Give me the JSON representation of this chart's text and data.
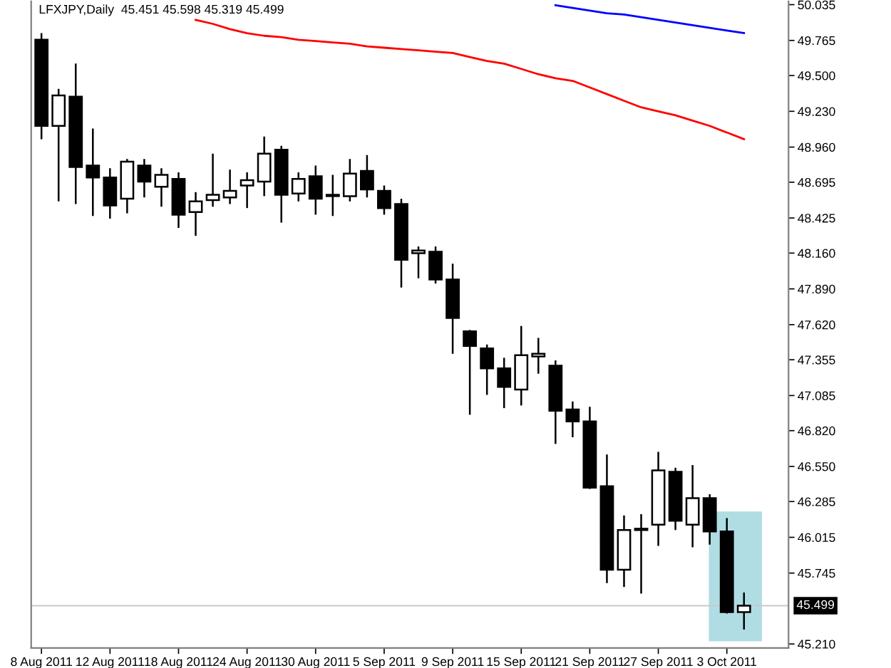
{
  "chart_data": {
    "type": "candlestick",
    "title": "LFXJPY,Daily  45.451 45.598 45.319 45.499",
    "categories": [
      "8 Aug 2011",
      null,
      null,
      null,
      "12 Aug 2011",
      null,
      null,
      null,
      "18 Aug 2011",
      null,
      null,
      null,
      "24 Aug 2011",
      null,
      null,
      null,
      "30 Aug 2011",
      null,
      null,
      null,
      "5 Sep 2011",
      null,
      null,
      null,
      "9 Sep 2011",
      null,
      null,
      null,
      "15 Sep 2011",
      null,
      null,
      null,
      "21 Sep 2011",
      null,
      null,
      null,
      "27 Sep 2011",
      null,
      null,
      null,
      "3 Oct 2011",
      null
    ],
    "ohlc": [
      [
        49.77,
        49.82,
        49.02,
        49.12
      ],
      [
        49.12,
        49.4,
        48.55,
        49.35
      ],
      [
        49.34,
        49.59,
        48.53,
        48.81
      ],
      [
        48.82,
        49.1,
        48.44,
        48.73
      ],
      [
        48.73,
        48.8,
        48.42,
        48.52
      ],
      [
        48.57,
        48.87,
        48.46,
        48.85
      ],
      [
        48.82,
        48.87,
        48.58,
        48.7
      ],
      [
        48.66,
        48.8,
        48.51,
        48.75
      ],
      [
        48.72,
        48.77,
        48.35,
        48.45
      ],
      [
        48.47,
        48.62,
        48.29,
        48.55
      ],
      [
        48.56,
        48.91,
        48.51,
        48.6
      ],
      [
        48.58,
        48.79,
        48.53,
        48.63
      ],
      [
        48.67,
        48.77,
        48.5,
        48.71
      ],
      [
        48.7,
        49.04,
        48.59,
        48.91
      ],
      [
        48.94,
        48.97,
        48.39,
        48.6
      ],
      [
        48.61,
        48.77,
        48.55,
        48.72
      ],
      [
        48.74,
        48.82,
        48.45,
        48.57
      ],
      [
        48.6,
        48.75,
        48.44,
        48.59
      ],
      [
        48.59,
        48.87,
        48.55,
        48.76
      ],
      [
        48.78,
        48.9,
        48.58,
        48.64
      ],
      [
        48.63,
        48.67,
        48.45,
        48.5
      ],
      [
        48.53,
        48.57,
        47.9,
        48.11
      ],
      [
        48.16,
        48.21,
        47.97,
        48.18
      ],
      [
        48.17,
        48.21,
        47.93,
        47.96
      ],
      [
        47.96,
        48.08,
        47.4,
        47.67
      ],
      [
        47.57,
        47.58,
        46.94,
        47.46
      ],
      [
        47.44,
        47.47,
        47.09,
        47.29
      ],
      [
        47.29,
        47.37,
        46.99,
        47.15
      ],
      [
        47.13,
        47.61,
        47.01,
        47.39
      ],
      [
        47.38,
        47.52,
        47.25,
        47.4
      ],
      [
        47.31,
        47.35,
        46.72,
        46.97
      ],
      [
        46.98,
        47.04,
        46.77,
        46.89
      ],
      [
        46.89,
        47.0,
        46.38,
        46.39
      ],
      [
        46.4,
        46.64,
        45.67,
        45.77
      ],
      [
        45.77,
        46.18,
        45.64,
        46.07
      ],
      [
        46.07,
        46.19,
        45.59,
        46.08
      ],
      [
        46.11,
        46.66,
        45.95,
        46.52
      ],
      [
        46.51,
        46.54,
        46.07,
        46.14
      ],
      [
        46.11,
        46.56,
        45.94,
        46.31
      ],
      [
        46.31,
        46.34,
        45.96,
        46.06
      ],
      [
        46.06,
        46.16,
        45.44,
        45.45
      ],
      [
        45.451,
        45.598,
        45.319,
        45.499
      ]
    ],
    "series": [
      {
        "type": "line",
        "color": "#ff0000",
        "values": [
          null,
          null,
          null,
          null,
          null,
          null,
          null,
          null,
          null,
          49.92,
          49.89,
          49.85,
          49.82,
          49.8,
          49.79,
          49.77,
          49.76,
          49.75,
          49.74,
          49.72,
          49.71,
          49.7,
          49.69,
          49.68,
          49.67,
          49.64,
          49.61,
          49.59,
          49.55,
          49.51,
          49.48,
          49.46,
          49.41,
          49.36,
          49.31,
          49.26,
          49.23,
          49.2,
          49.16,
          49.12,
          49.07,
          49.02
        ]
      },
      {
        "type": "line",
        "color": "#0000ff",
        "values": [
          null,
          null,
          null,
          null,
          null,
          null,
          null,
          null,
          null,
          null,
          null,
          null,
          null,
          null,
          null,
          null,
          null,
          null,
          null,
          null,
          null,
          null,
          null,
          null,
          null,
          null,
          null,
          null,
          null,
          null,
          50.03,
          50.01,
          49.99,
          49.97,
          49.96,
          49.94,
          49.92,
          49.9,
          49.88,
          49.86,
          49.84,
          49.82
        ]
      }
    ],
    "ylim": [
      45.18,
      50.06
    ],
    "yticks": [
      {
        "value": 50.035,
        "label": "50.035"
      },
      {
        "value": 49.765,
        "label": "49.765"
      },
      {
        "value": 49.5,
        "label": "49.500"
      },
      {
        "value": 49.23,
        "label": "49.230"
      },
      {
        "value": 48.96,
        "label": "48.960"
      },
      {
        "value": 48.695,
        "label": "48.695"
      },
      {
        "value": 48.425,
        "label": "48.425"
      },
      {
        "value": 48.16,
        "label": "48.160"
      },
      {
        "value": 47.89,
        "label": "47.890"
      },
      {
        "value": 47.62,
        "label": "47.620"
      },
      {
        "value": 47.355,
        "label": "47.355"
      },
      {
        "value": 47.085,
        "label": "47.085"
      },
      {
        "value": 46.82,
        "label": "46.820"
      },
      {
        "value": 46.55,
        "label": "46.550"
      },
      {
        "value": 46.285,
        "label": "46.285"
      },
      {
        "value": 46.015,
        "label": "46.015"
      },
      {
        "value": 45.745,
        "label": "45.745"
      },
      {
        "value": 45.21,
        "label": "45.210"
      }
    ],
    "ref_lines": [
      {
        "axis": "y",
        "value": 45.499,
        "label": "45.499",
        "color": "#c8c8d0"
      }
    ],
    "bands": [
      {
        "axis": "y",
        "from": 45.23,
        "to": 46.21,
        "color": "#b0dde3"
      }
    ],
    "grid": false
  }
}
